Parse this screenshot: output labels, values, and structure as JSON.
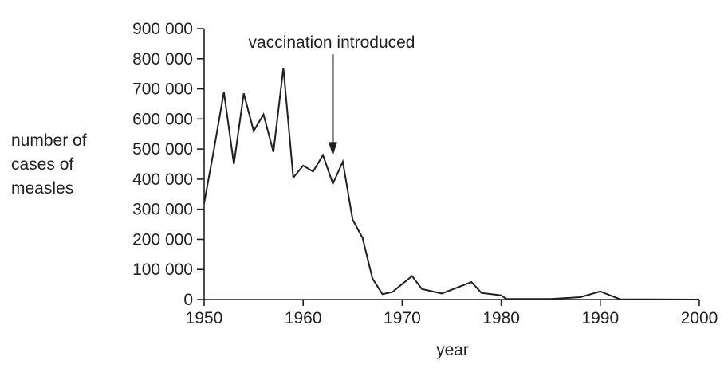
{
  "chart_data": {
    "type": "line",
    "title": "",
    "xlabel": "year",
    "ylabel_lines": [
      "number of",
      "cases of",
      "measles"
    ],
    "xlim": [
      1950,
      2000
    ],
    "ylim": [
      0,
      900000
    ],
    "x_ticks": [
      1950,
      1960,
      1970,
      1980,
      1990,
      2000
    ],
    "x_tick_labels": [
      "1950",
      "1960",
      "1970",
      "1980",
      "1990",
      "2000"
    ],
    "y_ticks": [
      0,
      100000,
      200000,
      300000,
      400000,
      500000,
      600000,
      700000,
      800000,
      900000
    ],
    "y_tick_labels": [
      "0",
      "100 000",
      "200 000",
      "300 000",
      "400 000",
      "500 000",
      "600 000",
      "700 000",
      "800 000",
      "900 000"
    ],
    "grid": false,
    "legend": false,
    "series": [
      {
        "x": [
          1950,
          1951,
          1952,
          1953,
          1954,
          1955,
          1956,
          1957,
          1958,
          1959,
          1960,
          1961,
          1962,
          1963,
          1964,
          1965,
          1966,
          1967,
          1968,
          1969,
          1971,
          1972,
          1974,
          1977,
          1978,
          1980,
          1980.5,
          1985,
          1988,
          1990,
          1992,
          2000
        ],
        "y": [
          320000,
          500000,
          690000,
          450000,
          685000,
          560000,
          615000,
          490000,
          770000,
          405000,
          445000,
          425000,
          480000,
          385000,
          458000,
          265000,
          205000,
          70000,
          18000,
          25000,
          78000,
          35000,
          20000,
          58000,
          22000,
          14000,
          2000,
          2000,
          8000,
          27000,
          1000,
          0
        ]
      }
    ],
    "annotation": {
      "text": "vaccination introduced",
      "x": 1963,
      "y": 510000
    }
  }
}
